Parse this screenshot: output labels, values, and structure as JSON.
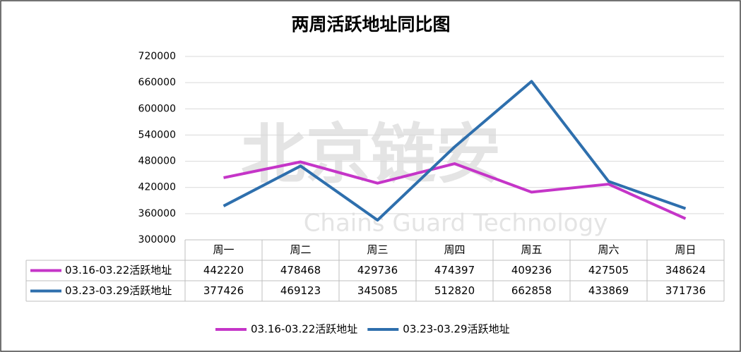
{
  "watermark": {
    "text": "北京链安",
    "subtext": "Chains Guard Technology"
  },
  "chart_data": {
    "type": "line",
    "title": "两周活跃地址同比图",
    "categories": [
      "周一",
      "周二",
      "周三",
      "周四",
      "周五",
      "周六",
      "周日"
    ],
    "series": [
      {
        "name": "03.16-03.22活跃地址",
        "color": "#c535c8",
        "values": [
          442220,
          478468,
          429736,
          474397,
          409236,
          427505,
          348624
        ]
      },
      {
        "name": "03.23-03.29活跃地址",
        "color": "#2e6fad",
        "values": [
          377426,
          469123,
          345085,
          512820,
          662858,
          433869,
          371736
        ]
      }
    ],
    "ylim": [
      300000,
      720000
    ],
    "yticks": [
      300000,
      360000,
      420000,
      480000,
      540000,
      600000,
      660000,
      720000
    ],
    "grid": true,
    "legend": "bottom"
  }
}
